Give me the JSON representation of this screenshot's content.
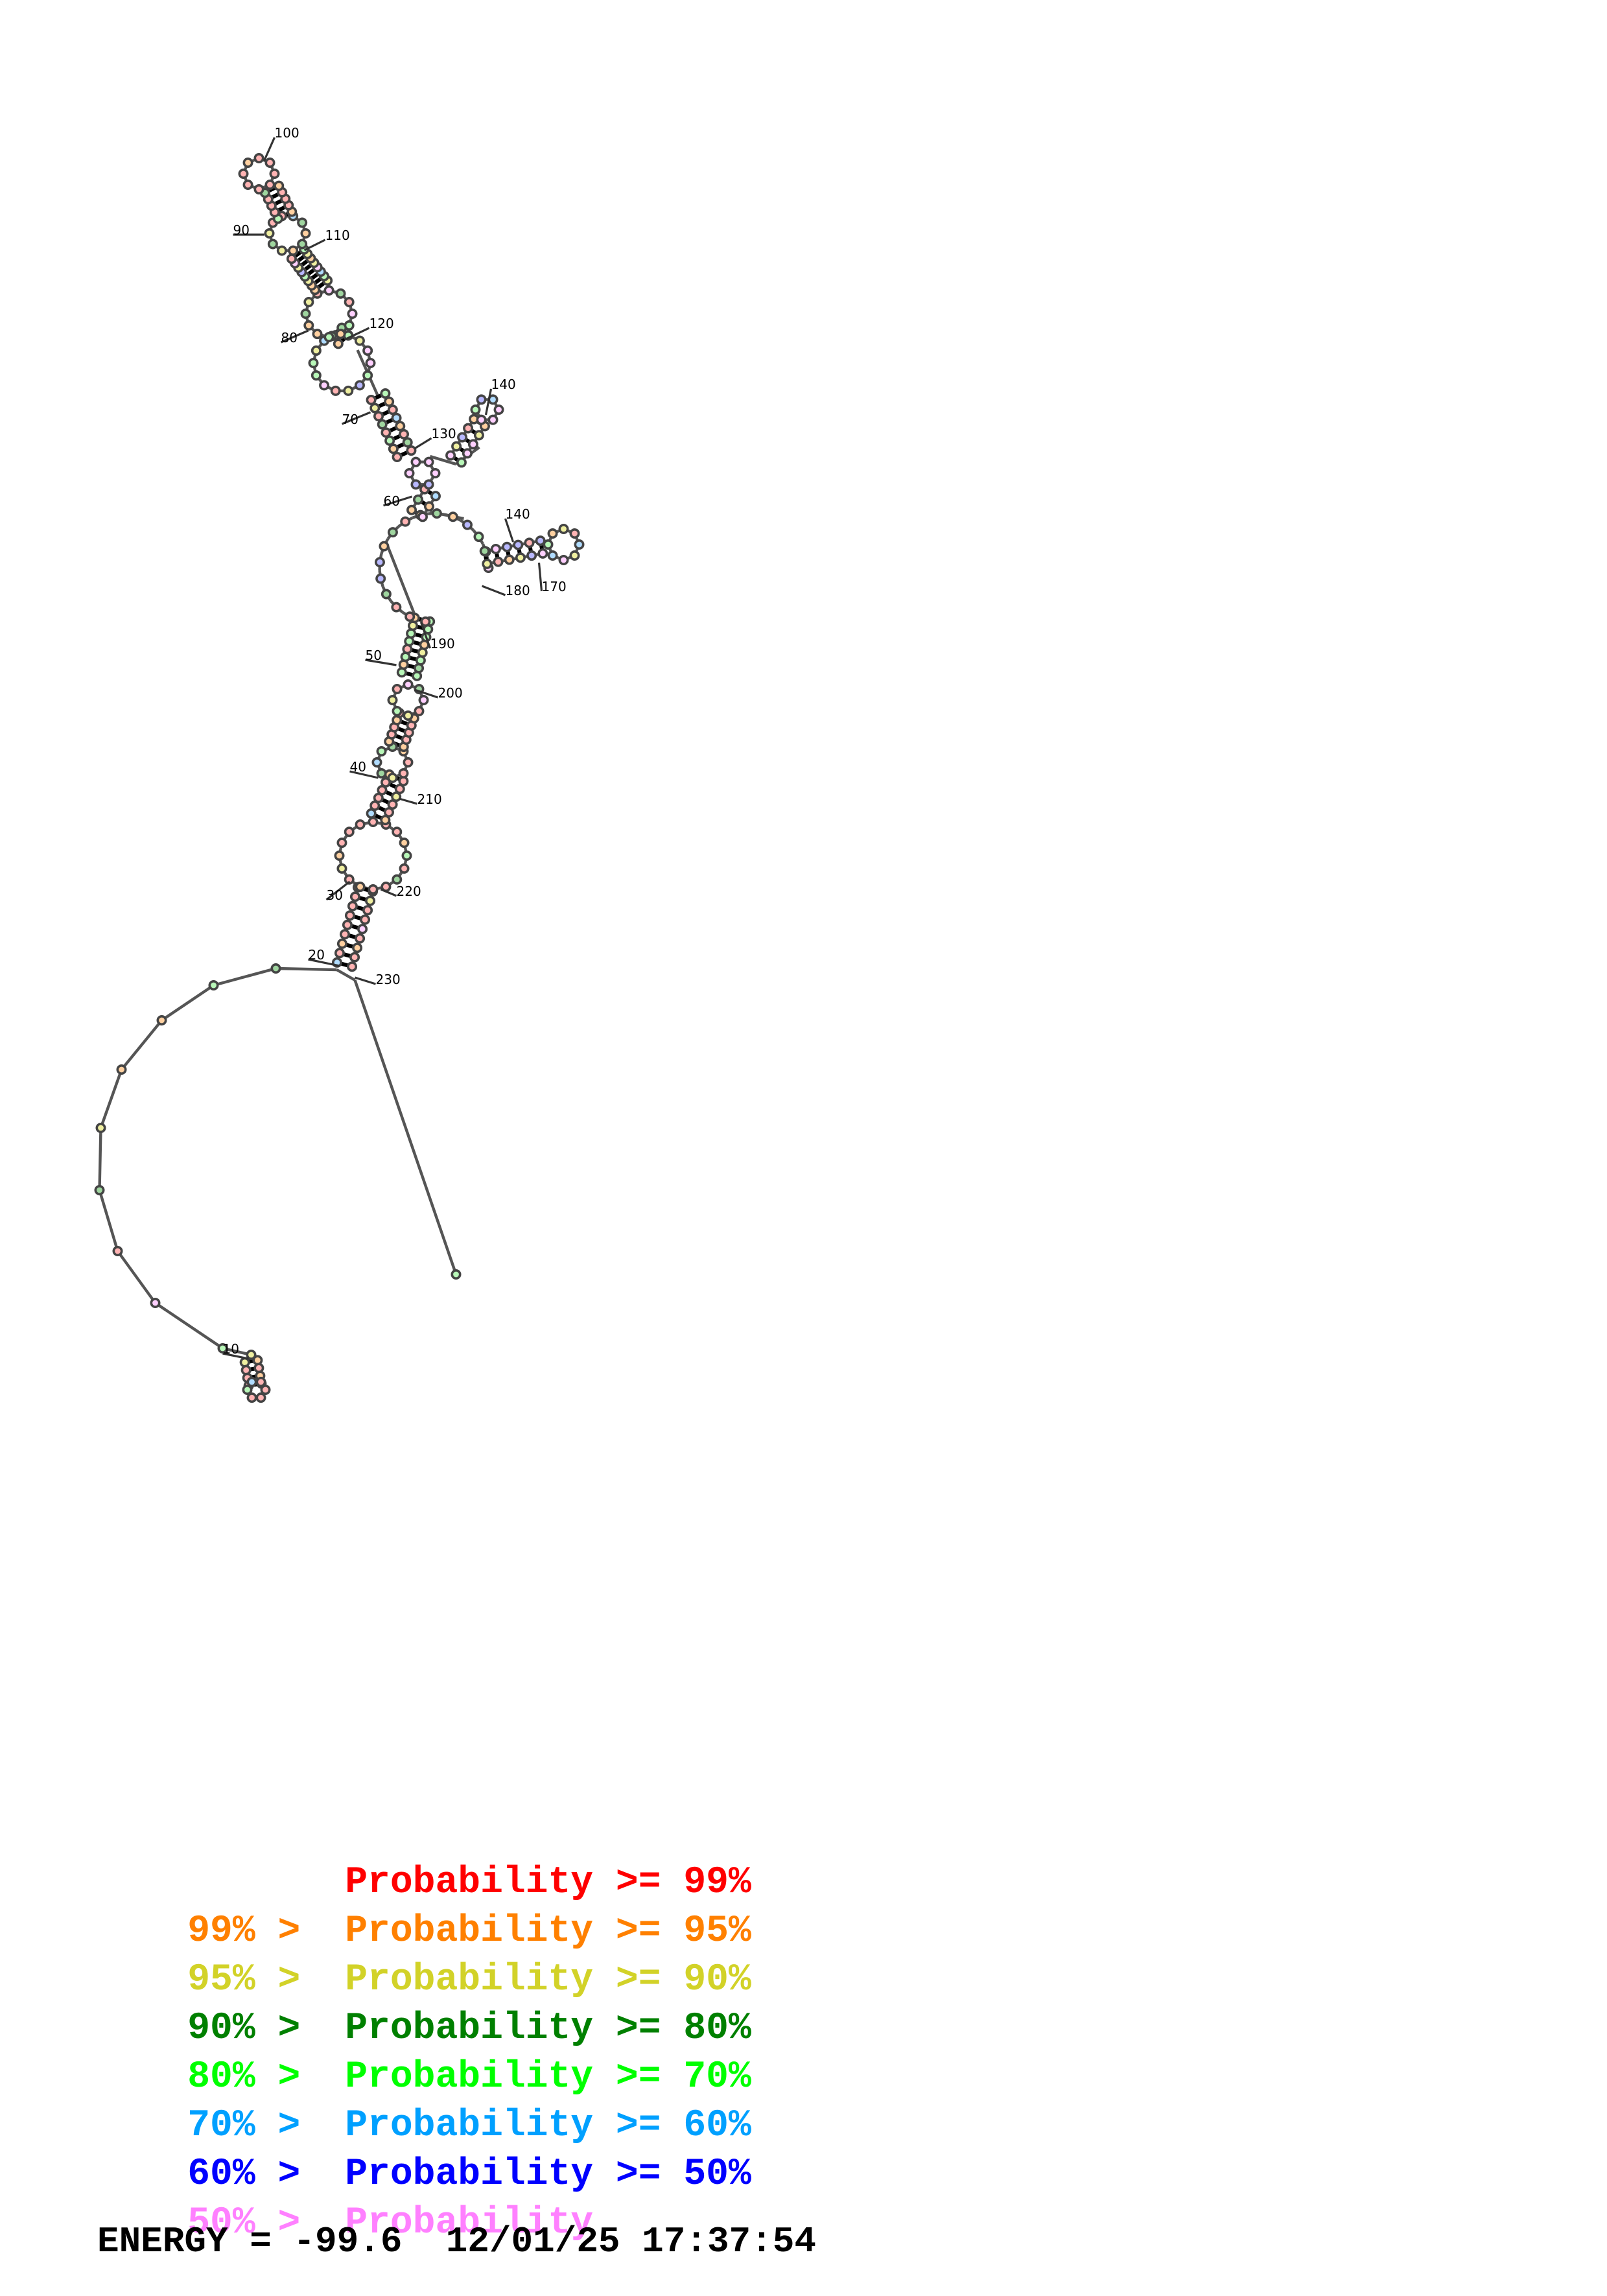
{
  "structure": {
    "numbers": [
      "10",
      "20",
      "30",
      "40",
      "50",
      "60",
      "70",
      "80",
      "90",
      "100",
      "110",
      "120",
      "130",
      "140",
      "140",
      "170",
      "180",
      "190",
      "200",
      "210",
      "220",
      "230"
    ]
  },
  "legend": [
    {
      "prefix": "",
      "label": "Probability",
      "suffix": ">= 99%",
      "color": "#ff0000"
    },
    {
      "prefix": "99% >",
      "label": "Probability",
      "suffix": ">= 95%",
      "color": "#ff8000"
    },
    {
      "prefix": "95% >",
      "label": "Probability",
      "suffix": ">= 90%",
      "color": "#d2d228"
    },
    {
      "prefix": "90% >",
      "label": "Probability",
      "suffix": ">= 80%",
      "color": "#008000"
    },
    {
      "prefix": "80% >",
      "label": "Probability",
      "suffix": ">= 70%",
      "color": "#00ff00"
    },
    {
      "prefix": "70% >",
      "label": "Probability",
      "suffix": ">= 60%",
      "color": "#00a0ff"
    },
    {
      "prefix": "60% >",
      "label": "Probability",
      "suffix": ">= 50%",
      "color": "#0000ff"
    },
    {
      "prefix": "50% >",
      "label": "Probability",
      "suffix": "",
      "color": "#ff80ff"
    }
  ],
  "energy": "ENERGY = -99.6  12/01/25 17:37:54"
}
